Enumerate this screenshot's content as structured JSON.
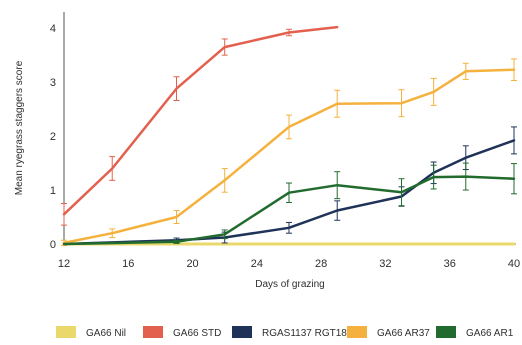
{
  "chart_data": {
    "type": "line",
    "xlabel": "Days of grazing",
    "ylabel": "Mean ryegrass staggers score",
    "xlim": [
      12,
      40
    ],
    "ylim": [
      0,
      4.3
    ],
    "xticks": [
      12,
      16,
      20,
      24,
      28,
      32,
      36,
      40
    ],
    "yticks": [
      0,
      1,
      2,
      3,
      4
    ],
    "grid": false,
    "legend_position": "bottom",
    "series": [
      {
        "name": "GA66 Nil",
        "color": "#ead86a",
        "x": [
          12,
          40
        ],
        "y": [
          0.0,
          0.0
        ],
        "err": [
          0,
          0
        ]
      },
      {
        "name": "GA66 STD",
        "color": "#e4604e",
        "x": [
          12,
          15,
          19,
          22,
          26,
          29
        ],
        "y": [
          0.55,
          1.4,
          2.88,
          3.65,
          3.92,
          4.02
        ],
        "err": [
          0.2,
          0.22,
          0.22,
          0.15,
          0.06,
          0
        ]
      },
      {
        "name": "RGAS1137 RGT18",
        "color": "#1f3358",
        "x": [
          12,
          19,
          22,
          26,
          29,
          33,
          35,
          37,
          40
        ],
        "y": [
          0.0,
          0.07,
          0.12,
          0.3,
          0.62,
          0.88,
          1.32,
          1.6,
          1.92
        ],
        "err": [
          0,
          0.04,
          0.1,
          0.1,
          0.18,
          0.18,
          0.2,
          0.22,
          0.25
        ]
      },
      {
        "name": "GA66 AR37",
        "color": "#f5b13d",
        "x": [
          12,
          15,
          19,
          22,
          26,
          29,
          33,
          35,
          37,
          40
        ],
        "y": [
          0.02,
          0.2,
          0.5,
          1.18,
          2.17,
          2.6,
          2.61,
          2.82,
          3.2,
          3.23
        ],
        "err": [
          0.05,
          0.08,
          0.12,
          0.22,
          0.22,
          0.25,
          0.25,
          0.25,
          0.15,
          0.2
        ]
      },
      {
        "name": "GA66 AR1",
        "color": "#226b2e",
        "x": [
          12,
          19,
          22,
          26,
          29,
          33,
          35,
          37,
          40
        ],
        "y": [
          0.0,
          0.04,
          0.18,
          0.95,
          1.09,
          0.96,
          1.24,
          1.25,
          1.21
        ],
        "err": [
          0,
          0.03,
          0.08,
          0.18,
          0.25,
          0.25,
          0.22,
          0.25,
          0.28
        ]
      }
    ]
  }
}
